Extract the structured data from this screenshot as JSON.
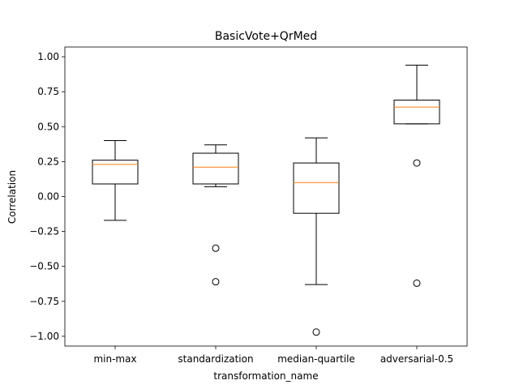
{
  "chart_data": {
    "type": "box",
    "title": "BasicVote+QrMed",
    "xlabel": "transformation_name",
    "ylabel": "Correlation",
    "ylim": [
      -1.07,
      1.07
    ],
    "yticks": [
      "1.00",
      "0.75",
      "0.50",
      "0.25",
      "0.00",
      "−0.25",
      "−0.50",
      "−0.75",
      "−1.00"
    ],
    "ytick_values": [
      1.0,
      0.75,
      0.5,
      0.25,
      0.0,
      -0.25,
      -0.5,
      -0.75,
      -1.0
    ],
    "grid": false,
    "colors": {
      "box": "#000000",
      "median": "#ff7f0e",
      "outlier": "#000000"
    },
    "categories": [
      "min-max",
      "standardization",
      "median-quartile",
      "adversarial-0.5"
    ],
    "boxes": [
      {
        "category": "min-max",
        "whislo": -0.17,
        "q1": 0.09,
        "med": 0.23,
        "q3": 0.26,
        "whishi": 0.4,
        "fliers": []
      },
      {
        "category": "standardization",
        "whislo": 0.07,
        "q1": 0.09,
        "med": 0.21,
        "q3": 0.31,
        "whishi": 0.37,
        "fliers": [
          -0.37,
          -0.61
        ]
      },
      {
        "category": "median-quartile",
        "whislo": -0.63,
        "q1": -0.12,
        "med": 0.1,
        "q3": 0.24,
        "whishi": 0.42,
        "fliers": [
          -0.97
        ]
      },
      {
        "category": "adversarial-0.5",
        "whislo": 0.52,
        "q1": 0.52,
        "med": 0.64,
        "q3": 0.69,
        "whishi": 0.94,
        "fliers": [
          0.24,
          -0.62
        ]
      }
    ]
  }
}
